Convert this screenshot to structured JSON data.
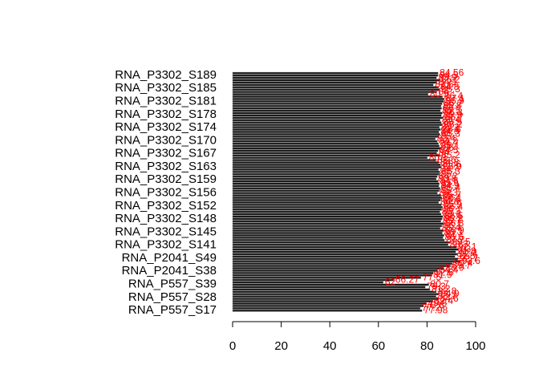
{
  "chart_data": {
    "type": "bar",
    "orientation": "horizontal",
    "title": "",
    "xlabel": "",
    "ylabel": "",
    "xlim": [
      0,
      100
    ],
    "xticks": [
      0,
      20,
      40,
      60,
      80,
      100
    ],
    "bar_color": "#1a1a1a",
    "label_color": "#ff0000",
    "axis_labels": [
      "RNA_P3302_S189",
      "RNA_P3302_S185",
      "RNA_P3302_S181",
      "RNA_P3302_S178",
      "RNA_P3302_S174",
      "RNA_P3302_S170",
      "RNA_P3302_S167",
      "RNA_P3302_S163",
      "RNA_P3302_S159",
      "RNA_P3302_S156",
      "RNA_P3302_S152",
      "RNA_P3302_S148",
      "RNA_P3302_S145",
      "RNA_P3302_S141",
      "RNA_P2041_S49",
      "RNA_P2041_S38",
      "RNA_P557_S39",
      "RNA_P557_S28",
      "RNA_P557_S17"
    ],
    "values": [
      84.56,
      84.5,
      83.9,
      85.2,
      84.1,
      82.6,
      84.8,
      85.3,
      84.0,
      80.5,
      86.4,
      87.1,
      86.9,
      86.2,
      85.8,
      86.0,
      85.5,
      86.3,
      85.9,
      86.7,
      85.4,
      85.9,
      86.2,
      85.1,
      85.6,
      84.9,
      85.3,
      85.0,
      83.4,
      84.2,
      84.7,
      85.1,
      86.0,
      84.5,
      84.0,
      85.2,
      80.1,
      83.6,
      84.8,
      85.6,
      85.9,
      84.7,
      85.3,
      85.0,
      84.2,
      83.8,
      84.6,
      85.1,
      84.9,
      85.4,
      85.0,
      84.3,
      85.7,
      86.1,
      85.6,
      84.8,
      85.9,
      86.4,
      86.0,
      85.3,
      85.8,
      86.5,
      86.2,
      85.7,
      86.8,
      86.1,
      85.4,
      86.9,
      86.3,
      87.0,
      86.6,
      87.2,
      89.5,
      88.7,
      92.1,
      93.0,
      91.8,
      92.4,
      91.5,
      92.7,
      93.6,
      90.4,
      89.7,
      86.9,
      84.4,
      82.6,
      81.9,
      77.5,
      66.27,
      62.0,
      80.7,
      79.3,
      81.2,
      83.8,
      84.9,
      83.7,
      84.6,
      82.4,
      79.8,
      78.6,
      77.2,
      77.98
    ]
  }
}
